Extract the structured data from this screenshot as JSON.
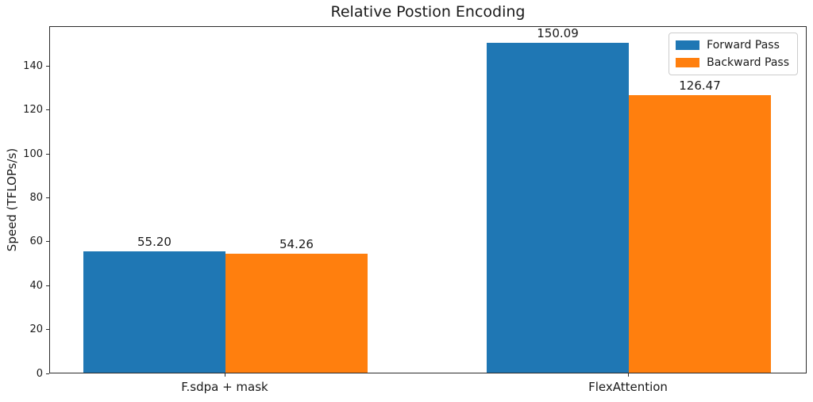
{
  "chart_data": {
    "type": "bar",
    "title": "Relative Postion Encoding",
    "xlabel": "",
    "ylabel": "Speed (TFLOPs/s)",
    "categories": [
      "F.sdpa + mask",
      "FlexAttention"
    ],
    "series": [
      {
        "name": "Forward Pass",
        "color": "#1f77b4",
        "values": [
          55.2,
          150.09
        ],
        "labels": [
          "55.20",
          "150.09"
        ]
      },
      {
        "name": "Backward Pass",
        "color": "#ff7f0e",
        "values": [
          54.26,
          126.47
        ],
        "labels": [
          "54.26",
          "126.47"
        ]
      }
    ],
    "yticks": [
      "0",
      "20",
      "40",
      "60",
      "80",
      "100",
      "120",
      "140"
    ],
    "ylim": [
      0,
      158.2
    ],
    "legend_position": "upper-right",
    "grid": false
  }
}
